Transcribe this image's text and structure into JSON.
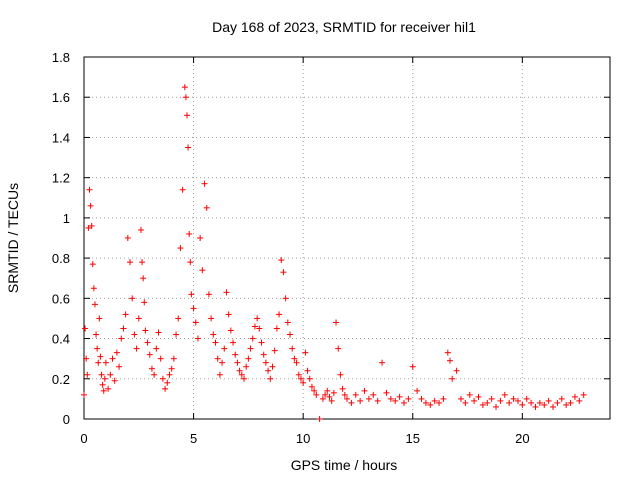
{
  "chart_data": {
    "type": "scatter",
    "title": "Day 168 of 2023, SRMTID for receiver hil1",
    "xlabel": "GPS time / hours",
    "ylabel": "SRMTID / TECUs",
    "xlim": [
      0,
      24
    ],
    "ylim": [
      0,
      1.8
    ],
    "xticks": [
      0,
      5,
      10,
      15,
      20
    ],
    "yticks": [
      0,
      0.2,
      0.4,
      0.6,
      0.8,
      1,
      1.2,
      1.4,
      1.6,
      1.8
    ],
    "ytick_labels": [
      "0",
      "0.2",
      "0.4",
      "0.6",
      "0.8",
      "1",
      "1.2",
      "1.4",
      "1.6",
      "1.8"
    ],
    "grid": true,
    "marker": "plus",
    "color": "#ff0000",
    "series": [
      {
        "name": "hil1",
        "x": [
          0.0,
          0.05,
          0.1,
          0.15,
          0.2,
          0.25,
          0.3,
          0.35,
          0.4,
          0.45,
          0.5,
          0.55,
          0.6,
          0.65,
          0.7,
          0.75,
          0.8,
          0.85,
          0.9,
          0.95,
          1.0,
          1.1,
          1.2,
          1.3,
          1.4,
          1.5,
          1.6,
          1.7,
          1.8,
          1.9,
          2.0,
          2.1,
          2.2,
          2.3,
          2.4,
          2.5,
          2.6,
          2.65,
          2.7,
          2.75,
          2.8,
          2.9,
          3.0,
          3.1,
          3.2,
          3.3,
          3.4,
          3.5,
          3.6,
          3.7,
          3.8,
          3.9,
          4.0,
          4.1,
          4.2,
          4.3,
          4.4,
          4.5,
          4.6,
          4.65,
          4.7,
          4.75,
          4.8,
          4.85,
          4.9,
          5.0,
          5.1,
          5.2,
          5.3,
          5.4,
          5.5,
          5.6,
          5.7,
          5.8,
          5.9,
          6.0,
          6.1,
          6.2,
          6.3,
          6.4,
          6.5,
          6.6,
          6.7,
          6.8,
          6.9,
          7.0,
          7.1,
          7.2,
          7.3,
          7.4,
          7.5,
          7.6,
          7.7,
          7.8,
          7.9,
          8.0,
          8.1,
          8.2,
          8.3,
          8.4,
          8.5,
          8.6,
          8.7,
          8.8,
          8.9,
          9.0,
          9.1,
          9.2,
          9.3,
          9.4,
          9.5,
          9.6,
          9.7,
          9.8,
          9.9,
          10.0,
          10.1,
          10.2,
          10.3,
          10.4,
          10.5,
          10.6,
          10.75,
          10.9,
          11.0,
          11.1,
          11.2,
          11.3,
          11.4,
          11.5,
          11.6,
          11.7,
          11.8,
          11.9,
          12.0,
          12.2,
          12.4,
          12.6,
          12.8,
          13.0,
          13.2,
          13.4,
          13.6,
          13.8,
          14.0,
          14.2,
          14.4,
          14.6,
          14.8,
          15.0,
          15.2,
          15.4,
          15.6,
          15.8,
          16.0,
          16.2,
          16.4,
          16.6,
          16.7,
          16.8,
          17.0,
          17.2,
          17.4,
          17.6,
          17.8,
          18.0,
          18.2,
          18.4,
          18.6,
          18.8,
          19.0,
          19.2,
          19.4,
          19.6,
          19.8,
          20.0,
          20.2,
          20.4,
          20.6,
          20.8,
          21.0,
          21.2,
          21.4,
          21.6,
          21.8,
          22.0,
          22.2,
          22.4,
          22.6,
          22.8
        ],
        "y": [
          0.12,
          0.45,
          0.3,
          0.22,
          0.95,
          1.14,
          1.06,
          0.96,
          0.77,
          0.65,
          0.57,
          0.42,
          0.35,
          0.28,
          0.5,
          0.31,
          0.22,
          0.17,
          0.14,
          0.2,
          0.28,
          0.15,
          0.22,
          0.3,
          0.19,
          0.33,
          0.26,
          0.4,
          0.45,
          0.52,
          0.9,
          0.78,
          0.6,
          0.42,
          0.35,
          0.5,
          0.94,
          0.78,
          0.7,
          0.58,
          0.44,
          0.38,
          0.32,
          0.25,
          0.22,
          0.35,
          0.43,
          0.3,
          0.2,
          0.15,
          0.18,
          0.22,
          0.25,
          0.3,
          0.42,
          0.5,
          0.85,
          1.14,
          1.65,
          1.6,
          1.51,
          1.35,
          0.92,
          0.78,
          0.62,
          0.55,
          0.48,
          0.4,
          0.9,
          0.74,
          1.17,
          1.05,
          0.62,
          0.5,
          0.42,
          0.38,
          0.3,
          0.22,
          0.28,
          0.35,
          0.63,
          0.52,
          0.44,
          0.38,
          0.32,
          0.28,
          0.24,
          0.22,
          0.2,
          0.26,
          0.3,
          0.35,
          0.4,
          0.46,
          0.5,
          0.45,
          0.38,
          0.32,
          0.28,
          0.24,
          0.2,
          0.26,
          0.34,
          0.45,
          0.52,
          0.79,
          0.73,
          0.6,
          0.48,
          0.42,
          0.35,
          0.3,
          0.28,
          0.22,
          0.2,
          0.18,
          0.33,
          0.24,
          0.2,
          0.16,
          0.14,
          0.12,
          0.0,
          0.1,
          0.12,
          0.14,
          0.11,
          0.09,
          0.13,
          0.48,
          0.35,
          0.22,
          0.15,
          0.12,
          0.1,
          0.08,
          0.12,
          0.09,
          0.14,
          0.1,
          0.12,
          0.09,
          0.28,
          0.13,
          0.1,
          0.09,
          0.11,
          0.08,
          0.1,
          0.26,
          0.14,
          0.1,
          0.08,
          0.07,
          0.09,
          0.08,
          0.1,
          0.33,
          0.29,
          0.2,
          0.24,
          0.1,
          0.08,
          0.12,
          0.09,
          0.11,
          0.07,
          0.08,
          0.1,
          0.06,
          0.09,
          0.12,
          0.08,
          0.1,
          0.09,
          0.07,
          0.1,
          0.08,
          0.06,
          0.08,
          0.07,
          0.09,
          0.06,
          0.08,
          0.1,
          0.07,
          0.08,
          0.11,
          0.09,
          0.12
        ]
      }
    ]
  }
}
